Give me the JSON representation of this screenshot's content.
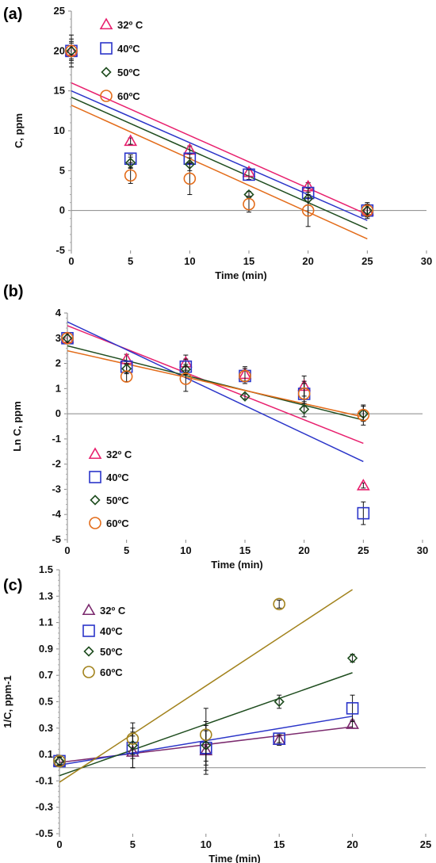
{
  "figure": {
    "panels": [
      "(a)",
      "(b)",
      "(c)"
    ]
  },
  "chart_data": [
    {
      "panel": "(a)",
      "type": "scatter",
      "xlabel": "Time (min)",
      "ylabel": "C, ppm",
      "xlim": [
        0,
        30
      ],
      "ylim": [
        -5,
        25
      ],
      "xticks": [
        0,
        5,
        10,
        15,
        20,
        25,
        30
      ],
      "yticks": [
        -5,
        0,
        5,
        10,
        15,
        20,
        25
      ],
      "legend_position": "top-left",
      "series": [
        {
          "name": "32º C",
          "marker": "triangle",
          "color": "#e8206e",
          "x": [
            0,
            5,
            10,
            15,
            20,
            25
          ],
          "y": [
            20,
            8.7,
            7.6,
            4.8,
            3.0,
            0
          ],
          "err": [
            2,
            0.4,
            0.5,
            0.5,
            0.5,
            0.8
          ],
          "fit": [
            16.0,
            -0.66
          ]
        },
        {
          "name": "40ºC",
          "marker": "square",
          "color": "#2b35c9",
          "x": [
            0,
            5,
            10,
            15,
            20,
            25
          ],
          "y": [
            20,
            6.5,
            6.5,
            4.5,
            2.2,
            0
          ],
          "err": [
            1.5,
            0.5,
            0.6,
            0.6,
            0.6,
            0.6
          ],
          "fit": [
            15.0,
            -0.65
          ]
        },
        {
          "name": "50ºC",
          "marker": "diamond",
          "color": "#1f4d1f",
          "x": [
            0,
            5,
            10,
            15,
            20,
            25
          ],
          "y": [
            20,
            6.0,
            5.8,
            2.0,
            1.5,
            0
          ],
          "err": [
            1.2,
            0.7,
            0.8,
            0.4,
            0.8,
            0.7
          ],
          "fit": [
            14.2,
            -0.66
          ]
        },
        {
          "name": "60ºC",
          "marker": "circle",
          "color": "#e36c1a",
          "x": [
            0,
            5,
            10,
            15,
            20,
            25
          ],
          "y": [
            20,
            4.4,
            4.0,
            0.8,
            0,
            0
          ],
          "err": [
            1,
            1.0,
            2.0,
            1.0,
            2.0,
            1.0
          ],
          "fit": [
            13.2,
            -0.67
          ]
        }
      ]
    },
    {
      "panel": "(b)",
      "type": "scatter",
      "xlabel": "Time (min)",
      "ylabel": "Ln C, ppm",
      "xlim": [
        0,
        30
      ],
      "ylim": [
        -5,
        4
      ],
      "xticks": [
        0,
        5,
        10,
        15,
        20,
        25,
        30
      ],
      "yticks": [
        -5,
        -4,
        -3,
        -2,
        -1,
        0,
        1,
        2,
        3,
        4
      ],
      "legend_position": "bottom-left",
      "series": [
        {
          "name": "32º C",
          "marker": "triangle",
          "color": "#e8206e",
          "x": [
            0,
            5,
            10,
            15,
            20,
            25
          ],
          "y": [
            3.0,
            2.16,
            2.03,
            1.57,
            1.1,
            -2.85
          ],
          "err": [
            0.2,
            0.2,
            0.3,
            0.3,
            0.4,
            0.1
          ],
          "fit": [
            3.5,
            -0.187
          ]
        },
        {
          "name": "40ºC",
          "marker": "square",
          "color": "#2b35c9",
          "x": [
            0,
            5,
            10,
            15,
            20,
            25
          ],
          "y": [
            3.0,
            1.87,
            1.87,
            1.5,
            0.79,
            -3.95
          ],
          "err": [
            0.2,
            0.2,
            0.3,
            0.3,
            0.5,
            0.45
          ],
          "fit": [
            3.65,
            -0.222
          ]
        },
        {
          "name": "50ºC",
          "marker": "diamond",
          "color": "#1f4d1f",
          "x": [
            0,
            5,
            10,
            15,
            20,
            25
          ],
          "y": [
            3.0,
            1.79,
            1.76,
            0.69,
            0.18,
            0
          ],
          "err": [
            0.2,
            0.2,
            0.2,
            0.1,
            0.3,
            0.3
          ],
          "fit": [
            2.7,
            -0.118
          ]
        },
        {
          "name": "60ºC",
          "marker": "circle",
          "color": "#e36c1a",
          "x": [
            0,
            5,
            10,
            15,
            20,
            25
          ],
          "y": [
            3.0,
            1.48,
            1.39,
            1.5,
            0.8,
            -0.05
          ],
          "err": [
            0.2,
            0.2,
            0.5,
            0.2,
            0.4,
            0.4
          ],
          "fit": [
            2.5,
            -0.105
          ]
        }
      ]
    },
    {
      "panel": "(c)",
      "type": "scatter",
      "xlabel": "Time (min)",
      "ylabel": "1/C, ppm-1",
      "xlim": [
        0,
        25
      ],
      "ylim": [
        -0.5,
        1.5
      ],
      "xticks": [
        0,
        5,
        10,
        15,
        20,
        25
      ],
      "yticks": [
        -0.5,
        -0.3,
        -0.1,
        0.1,
        0.3,
        0.5,
        0.7,
        0.9,
        1.1,
        1.3,
        1.5
      ],
      "legend_position": "top-left",
      "series": [
        {
          "name": "32º C",
          "marker": "triangle",
          "color": "#7b2a6e",
          "x": [
            0,
            5,
            10,
            15,
            20
          ],
          "y": [
            0.05,
            0.12,
            0.13,
            0.21,
            0.33
          ],
          "err": [
            0.03,
            0.12,
            0.15,
            0.04,
            0.03
          ],
          "fit": [
            0.04,
            0.0135
          ]
        },
        {
          "name": "40ºC",
          "marker": "square",
          "color": "#2b35c9",
          "x": [
            0,
            5,
            10,
            15,
            20
          ],
          "y": [
            0.05,
            0.15,
            0.15,
            0.22,
            0.45
          ],
          "err": [
            0.03,
            0.15,
            0.2,
            0.03,
            0.1
          ],
          "fit": [
            0.02,
            0.0185
          ]
        },
        {
          "name": "50ºC",
          "marker": "diamond",
          "color": "#1f4d1f",
          "x": [
            0,
            5,
            10,
            15,
            20
          ],
          "y": [
            0.05,
            0.17,
            0.17,
            0.5,
            0.83
          ],
          "err": [
            0.03,
            0.1,
            0.15,
            0.05,
            0.03
          ],
          "fit": [
            -0.06,
            0.039
          ]
        },
        {
          "name": "60ºC",
          "marker": "circle",
          "color": "#a2821c",
          "x": [
            0,
            5,
            10,
            15,
            20
          ],
          "y": [
            0.05,
            0.22,
            0.25,
            1.24,
            null
          ],
          "err": [
            0.03,
            0.12,
            0.2,
            0.03,
            0
          ],
          "fit": [
            -0.11,
            0.073
          ]
        }
      ]
    }
  ]
}
